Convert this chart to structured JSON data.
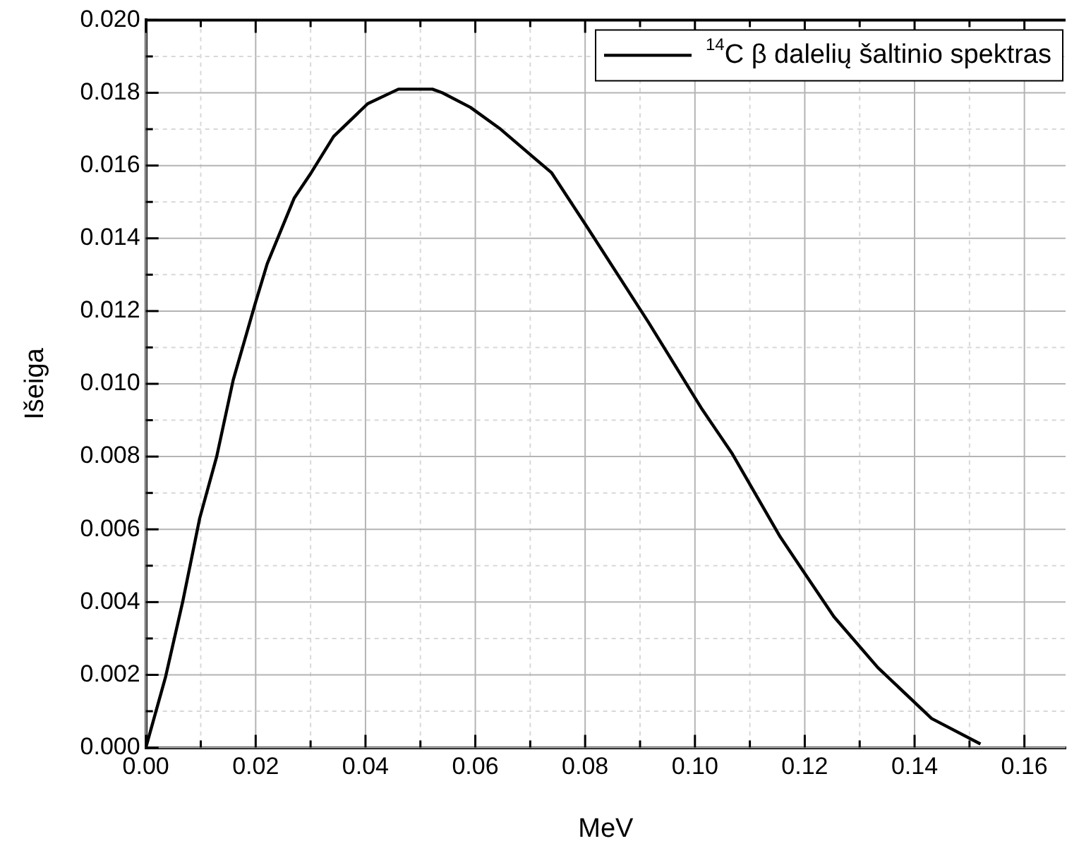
{
  "chart_data": {
    "type": "line",
    "xlabel": "MeV",
    "ylabel": "Išeiga",
    "legend": "top right",
    "grid": true,
    "marker": "none",
    "line_style": "solid",
    "xlim": [
      0,
      0.1675
    ],
    "ylim": [
      0,
      0.02
    ],
    "xticks": [
      {
        "value": 0,
        "label": "0.00"
      },
      {
        "value": 0.01,
        "label": null
      },
      {
        "value": 0.02,
        "label": "0.02"
      },
      {
        "value": 0.03,
        "label": null
      },
      {
        "value": 0.04,
        "label": "0.04"
      },
      {
        "value": 0.05,
        "label": null
      },
      {
        "value": 0.06,
        "label": "0.06"
      },
      {
        "value": 0.07,
        "label": null
      },
      {
        "value": 0.08,
        "label": "0.08"
      },
      {
        "value": 0.09,
        "label": null
      },
      {
        "value": 0.1,
        "label": "0.10"
      },
      {
        "value": 0.11,
        "label": null
      },
      {
        "value": 0.12,
        "label": "0.12"
      },
      {
        "value": 0.13,
        "label": null
      },
      {
        "value": 0.14,
        "label": "0.14"
      },
      {
        "value": 0.15,
        "label": null
      },
      {
        "value": 0.16,
        "label": "0.16"
      }
    ],
    "yticks": [
      {
        "value": 0,
        "label": "0.000"
      },
      {
        "value": 0.001,
        "label": null
      },
      {
        "value": 0.002,
        "label": "0.002"
      },
      {
        "value": 0.003,
        "label": null
      },
      {
        "value": 0.004,
        "label": "0.004"
      },
      {
        "value": 0.005,
        "label": null
      },
      {
        "value": 0.006,
        "label": "0.006"
      },
      {
        "value": 0.007,
        "label": null
      },
      {
        "value": 0.008,
        "label": "0.008"
      },
      {
        "value": 0.009,
        "label": null
      },
      {
        "value": 0.01,
        "label": "0.010"
      },
      {
        "value": 0.011,
        "label": null
      },
      {
        "value": 0.012,
        "label": "0.012"
      },
      {
        "value": 0.013,
        "label": null
      },
      {
        "value": 0.014,
        "label": "0.014"
      },
      {
        "value": 0.015,
        "label": null
      },
      {
        "value": 0.016,
        "label": "0.016"
      },
      {
        "value": 0.017,
        "label": null
      },
      {
        "value": 0.018,
        "label": "0.018"
      },
      {
        "value": 0.019,
        "label": null
      },
      {
        "value": 0.02,
        "label": "0.020"
      }
    ],
    "series": [
      {
        "name": "$^{14}$C β dalelių šaltinio spektras",
        "color": "#000000",
        "x": [
          0,
          0.0036,
          0.0067,
          0.0098,
          0.0129,
          0.0159,
          0.0199,
          0.0221,
          0.027,
          0.0301,
          0.0342,
          0.0404,
          0.046,
          0.0522,
          0.054,
          0.0591,
          0.0646,
          0.0739,
          0.0804,
          0.0915,
          0.1013,
          0.1067,
          0.1155,
          0.1195,
          0.1253,
          0.1333,
          0.1431,
          0.152
        ],
        "values": [
          0,
          0.00195,
          0.004,
          0.0063,
          0.008,
          0.0101,
          0.0122,
          0.0133,
          0.0151,
          0.0158,
          0.0168,
          0.0177,
          0.0181,
          0.0181,
          0.018,
          0.0176,
          0.017,
          0.0158,
          0.0143,
          0.0117,
          0.0093,
          0.0081,
          0.0058,
          0.0049,
          0.0036,
          0.0022,
          0.0008,
          0.0001
        ]
      }
    ]
  }
}
